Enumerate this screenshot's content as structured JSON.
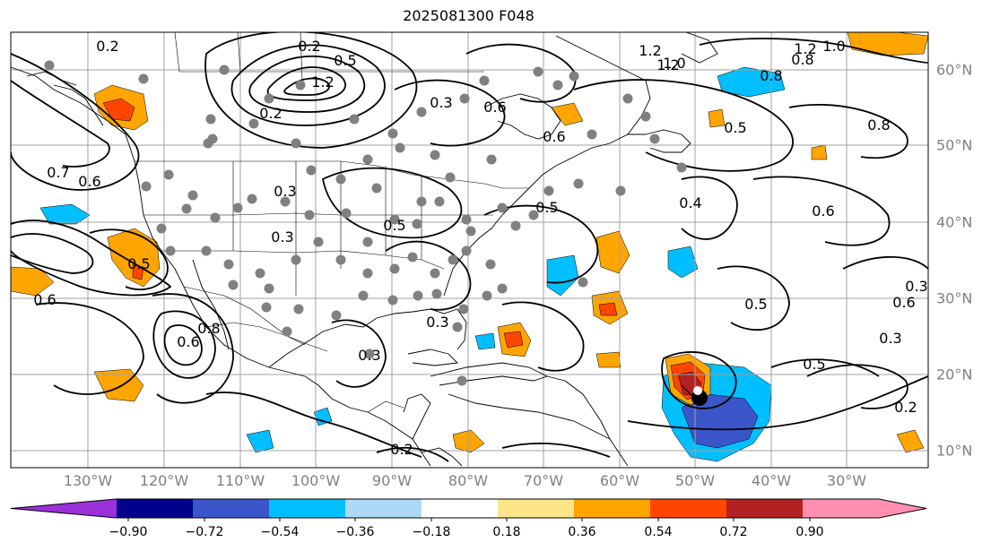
{
  "title": "2025081300 F048",
  "map": {
    "longitude_labels": [
      "130°W",
      "120°W",
      "110°W",
      "100°W",
      "90°W",
      "80°W",
      "70°W",
      "60°W",
      "50°W",
      "40°W",
      "30°W"
    ],
    "latitude_labels": [
      "60°N",
      "50°N",
      "40°N",
      "30°N",
      "20°N",
      "10°N"
    ],
    "contour_labels": [
      "0.2",
      "0.2",
      "1.2",
      "0.5",
      "1.2",
      "1.2",
      "0.3",
      "0.6",
      "0.2",
      "0.8",
      "1.0",
      "1.0",
      "1.2",
      "0.8",
      "0.6",
      "0.7",
      "0.6",
      "0.5",
      "0.8",
      "0.5",
      "0.5",
      "0.4",
      "0.6",
      "0.3",
      "0.3",
      "0.5",
      "0.3",
      "0.5",
      "0.6",
      "0.3",
      "0.6",
      "0.6",
      "0.8",
      "0.3",
      "0.2",
      "0.2",
      "0.5",
      "0.3"
    ],
    "colors": {
      "land_outline": "#000000",
      "grid": "#a0a0a0",
      "station_marker": "#808080",
      "storm_marker": "#000000"
    }
  },
  "colorbar": {
    "ticks": [
      "−0.90",
      "−0.72",
      "−0.54",
      "−0.36",
      "−0.18",
      "0.18",
      "0.36",
      "0.54",
      "0.72",
      "0.90"
    ],
    "bins": [
      {
        "color": "#9b30d9"
      },
      {
        "color": "#8b2fd0"
      },
      {
        "color": "#00008b"
      },
      {
        "color": "#3a56c9"
      },
      {
        "color": "#00bfff"
      },
      {
        "color": "#add8f6"
      },
      {
        "color": "#ffffff"
      },
      {
        "color": "#fde68a"
      },
      {
        "color": "#ffa500"
      },
      {
        "color": "#ff4500"
      },
      {
        "color": "#b22222"
      },
      {
        "color": "#ff8fb0"
      }
    ]
  }
}
